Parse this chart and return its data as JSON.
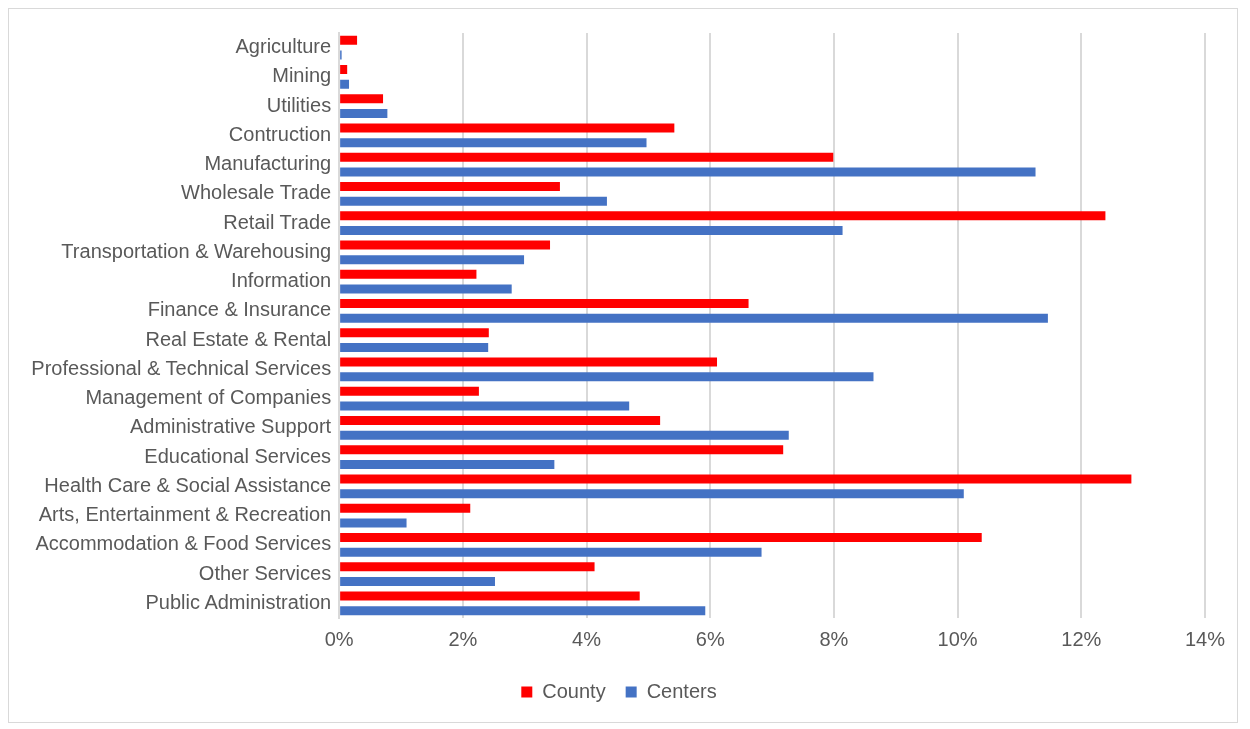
{
  "chart_data": {
    "type": "bar",
    "orientation": "horizontal",
    "categories": [
      "Agriculture",
      "Mining",
      "Utilities",
      "Contruction",
      "Manufacturing",
      "Wholesale Trade",
      "Retail Trade",
      "Transportation & Warehousing",
      "Information",
      "Finance & Insurance",
      "Real Estate & Rental",
      "Professional & Technical Services",
      "Management of Companies",
      "Administrative Support",
      "Educational Services",
      "Health Care & Social Assistance",
      "Arts, Entertainment & Recreation",
      "Accommodation & Food Services",
      "Other Services",
      "Public Administration"
    ],
    "series": [
      {
        "name": "County",
        "color": "#ff0000",
        "values": [
          0.29,
          0.13,
          0.71,
          5.42,
          7.99,
          3.57,
          12.39,
          3.41,
          2.22,
          6.62,
          2.42,
          6.11,
          2.26,
          5.19,
          7.18,
          12.81,
          2.12,
          10.39,
          4.13,
          4.86
        ]
      },
      {
        "name": "Centers",
        "color": "#4472c4",
        "values": [
          0.04,
          0.16,
          0.78,
          4.97,
          11.26,
          4.33,
          8.14,
          2.99,
          2.79,
          11.46,
          2.41,
          8.64,
          4.69,
          7.27,
          3.48,
          10.1,
          1.09,
          6.83,
          2.52,
          5.92
        ]
      }
    ],
    "xlim": [
      0,
      14
    ],
    "xticks": [
      {
        "value": 0,
        "label": "0%"
      },
      {
        "value": 2,
        "label": "2%"
      },
      {
        "value": 4,
        "label": "4%"
      },
      {
        "value": 6,
        "label": "6%"
      },
      {
        "value": 8,
        "label": "8%"
      },
      {
        "value": 10,
        "label": "10%"
      },
      {
        "value": 12,
        "label": "12%"
      },
      {
        "value": 14,
        "label": "14%"
      }
    ],
    "grid": "x",
    "legend": "bottom"
  }
}
